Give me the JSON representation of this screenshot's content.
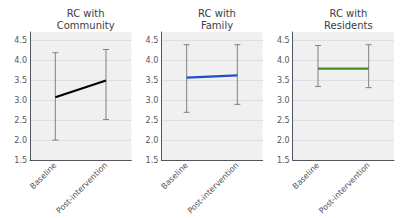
{
  "chart_data": [
    {
      "type": "line",
      "title": "RC with\nCommunity",
      "color": "#000000",
      "categories": [
        "Baseline",
        "Post-intervention"
      ],
      "values": [
        3.08,
        3.5
      ],
      "error_low": [
        1.08,
        0.98
      ],
      "error_high": [
        1.12,
        0.78
      ],
      "ylim": [
        1.5,
        4.72
      ],
      "yticks": [
        1.5,
        {
          "value": 2.0,
          "label": "2.0"
        },
        2.5,
        {
          "value": 3.0,
          "label": "3.0"
        },
        3.5,
        {
          "value": 4.0,
          "label": "4.0"
        },
        4.5
      ],
      "grid": true
    },
    {
      "type": "line",
      "title": "RC with\nFamily",
      "color": "#1f4fc8",
      "categories": [
        "Baseline",
        "Post-intervention"
      ],
      "values": [
        3.57,
        3.63
      ],
      "error_low": [
        0.87,
        0.73
      ],
      "error_high": [
        0.83,
        0.77
      ],
      "ylim": [
        1.5,
        4.72
      ],
      "yticks": [
        1.5,
        {
          "value": 2.0,
          "label": "2.0"
        },
        2.5,
        {
          "value": 3.0,
          "label": "3.0"
        },
        3.5,
        {
          "value": 4.0,
          "label": "4.0"
        },
        4.5
      ],
      "grid": true
    },
    {
      "type": "line",
      "title": "RC with\nResidents",
      "color": "#4a8c1c",
      "categories": [
        "Baseline",
        "Post-intervention"
      ],
      "values": [
        3.8,
        3.8
      ],
      "error_low": [
        0.45,
        0.48
      ],
      "error_high": [
        0.58,
        0.6
      ],
      "ylim": [
        1.5,
        4.72
      ],
      "yticks": [
        1.5,
        {
          "value": 2.0,
          "label": "2.0"
        },
        2.5,
        {
          "value": 3.0,
          "label": "3.0"
        },
        3.5,
        {
          "value": 4.0,
          "label": "4.0"
        },
        4.5
      ],
      "grid": true
    }
  ]
}
